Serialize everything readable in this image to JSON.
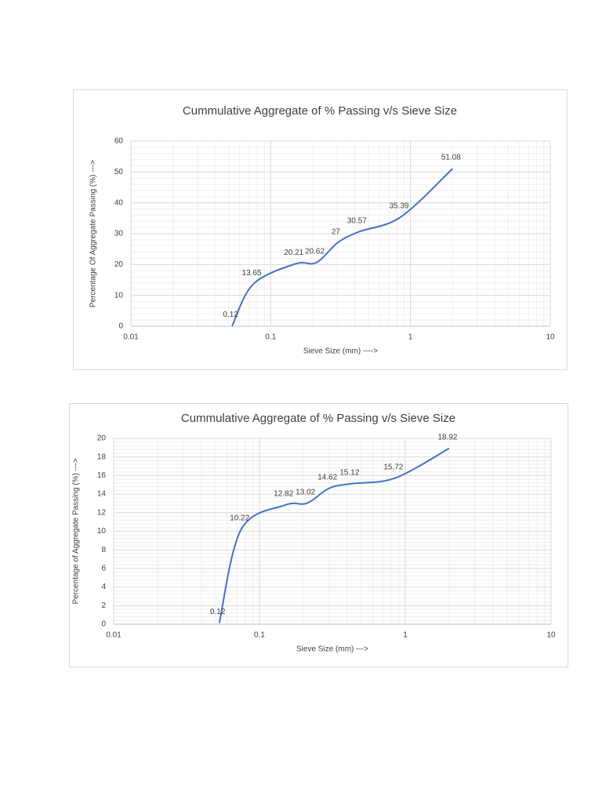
{
  "chart_data": [
    {
      "type": "line",
      "title": "Cummulative Aggregate of % Passing v/s Sieve Size",
      "xlabel": "Sieve Size (mm) ---->",
      "ylabel": "Percentage Of Aggregate Passing (%) --->",
      "x": [
        0.053,
        0.075,
        0.15,
        0.212,
        0.3,
        0.425,
        0.85,
        2
      ],
      "series": [
        {
          "color": "#4472c4",
          "values": [
            0.12,
            13.65,
            20.21,
            20.62,
            27,
            30.57,
            35.39,
            51.08
          ]
        }
      ],
      "xlim": [
        0.01,
        10
      ],
      "xticks": [
        0.01,
        0.1,
        1,
        10
      ],
      "xlog": true,
      "ylim": [
        0,
        60
      ],
      "yticks": [
        0,
        10,
        20,
        30,
        40,
        50,
        60
      ],
      "grid": true
    },
    {
      "type": "line",
      "title": "Cummulative Aggregate of % Passing v/s Sieve Size",
      "xlabel": "Sieve Size (mm) --->",
      "ylabel": "Percentage of Aggregate Passing (%) --->",
      "x": [
        0.053,
        0.075,
        0.15,
        0.212,
        0.3,
        0.425,
        0.85,
        2
      ],
      "series": [
        {
          "color": "#4472c4",
          "values": [
            0.12,
            10.22,
            12.82,
            13.02,
            14.62,
            15.12,
            15.72,
            18.92
          ]
        }
      ],
      "xlim": [
        0.01,
        10
      ],
      "xticks": [
        0.01,
        0.1,
        1,
        10
      ],
      "xlog": true,
      "ylim": [
        0,
        20
      ],
      "yticks": [
        0,
        2,
        4,
        6,
        8,
        10,
        12,
        14,
        16,
        18,
        20
      ],
      "grid": true
    }
  ]
}
